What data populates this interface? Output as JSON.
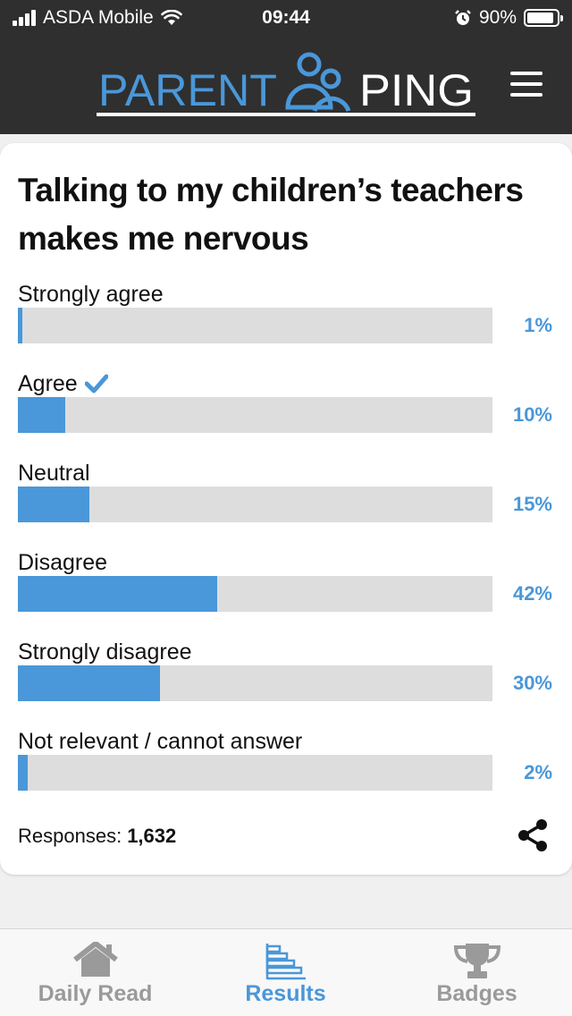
{
  "status_bar": {
    "carrier": "ASDA Mobile",
    "time": "09:44",
    "battery": "90%",
    "battery_level": 0.9
  },
  "header": {
    "logo_text_left": "PARENT",
    "logo_text_right": "PING",
    "logo_color": "#4a97d9"
  },
  "poll": {
    "question": "Talking to my children’s teachers makes me nervous",
    "options": [
      {
        "label": "Strongly agree",
        "percent_label": "1%",
        "percent": 1,
        "selected": false
      },
      {
        "label": "Agree",
        "percent_label": "10%",
        "percent": 10,
        "selected": true
      },
      {
        "label": "Neutral",
        "percent_label": "15%",
        "percent": 15,
        "selected": false
      },
      {
        "label": "Disagree",
        "percent_label": "42%",
        "percent": 42,
        "selected": false
      },
      {
        "label": "Strongly disagree",
        "percent_label": "30%",
        "percent": 30,
        "selected": false
      },
      {
        "label": "Not relevant / cannot answer",
        "percent_label": "2%",
        "percent": 2,
        "selected": false
      }
    ],
    "responses_label": "Responses:",
    "responses_count": "1,632"
  },
  "bottom_nav": {
    "items": [
      {
        "label": "Daily Read",
        "icon": "home-icon",
        "active": false
      },
      {
        "label": "Results",
        "icon": "bar-chart-icon",
        "active": true
      },
      {
        "label": "Badges",
        "icon": "trophy-icon",
        "active": false
      }
    ]
  },
  "colors": {
    "accent": "#4a97d9",
    "header_bg": "#2f2f2f",
    "bar_track": "#dddddd",
    "nav_inactive": "#9a9a9a"
  }
}
